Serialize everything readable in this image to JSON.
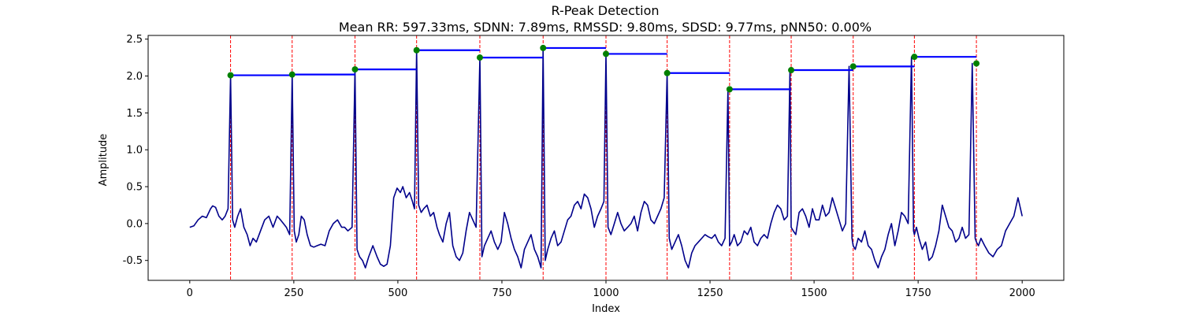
{
  "chart_data": {
    "type": "line",
    "title": "R-Peak Detection",
    "subtitle": "Mean RR: 597.33ms, SDNN: 7.89ms, RMSSD: 9.80ms, SDSD: 9.77ms, pNN50: 0.00%",
    "xlabel": "Index",
    "ylabel": "Amplitude",
    "xlim": [
      -100,
      2100
    ],
    "ylim": [
      -0.77,
      2.55
    ],
    "xticks": [
      0,
      250,
      500,
      750,
      1000,
      1250,
      1500,
      1750,
      2000
    ],
    "yticks": [
      -0.5,
      0.0,
      0.5,
      1.0,
      1.5,
      2.0,
      2.5
    ],
    "grid": false,
    "r_peaks": {
      "x": [
        98,
        246,
        397,
        545,
        697,
        849,
        1000,
        1147,
        1297,
        1445,
        1594,
        1741,
        1890
      ],
      "y": [
        2.01,
        2.02,
        2.09,
        2.35,
        2.25,
        2.38,
        2.3,
        2.04,
        1.82,
        2.08,
        2.13,
        2.26,
        2.17
      ]
    },
    "signal": {
      "x": [
        0,
        10,
        20,
        30,
        40,
        50,
        55,
        62,
        70,
        78,
        85,
        92,
        98,
        103,
        108,
        115,
        122,
        130,
        138,
        145,
        152,
        160,
        170,
        180,
        190,
        200,
        210,
        218,
        225,
        232,
        240,
        246,
        251,
        256,
        262,
        268,
        275,
        282,
        290,
        298,
        306,
        315,
        325,
        335,
        345,
        355,
        365,
        372,
        380,
        390,
        397,
        402,
        408,
        415,
        422,
        430,
        440,
        450,
        458,
        466,
        474,
        482,
        490,
        498,
        506,
        512,
        520,
        528,
        535,
        540,
        545,
        550,
        556,
        562,
        570,
        578,
        586,
        594,
        600,
        608,
        616,
        624,
        632,
        640,
        648,
        656,
        664,
        672,
        680,
        688,
        697,
        702,
        708,
        716,
        724,
        732,
        740,
        748,
        756,
        764,
        772,
        780,
        788,
        796,
        804,
        812,
        820,
        828,
        836,
        844,
        849,
        854,
        860,
        868,
        876,
        884,
        892,
        900,
        908,
        916,
        924,
        932,
        940,
        948,
        956,
        964,
        972,
        980,
        988,
        995,
        1000,
        1005,
        1012,
        1020,
        1028,
        1036,
        1044,
        1052,
        1060,
        1068,
        1076,
        1084,
        1092,
        1100,
        1108,
        1116,
        1124,
        1132,
        1140,
        1147,
        1152,
        1158,
        1166,
        1174,
        1182,
        1190,
        1198,
        1206,
        1214,
        1222,
        1230,
        1238,
        1246,
        1254,
        1262,
        1270,
        1278,
        1286,
        1293,
        1297,
        1302,
        1308,
        1316,
        1324,
        1332,
        1340,
        1348,
        1356,
        1364,
        1372,
        1380,
        1388,
        1396,
        1404,
        1412,
        1420,
        1428,
        1436,
        1442,
        1445,
        1450,
        1456,
        1464,
        1472,
        1480,
        1488,
        1496,
        1504,
        1512,
        1520,
        1528,
        1536,
        1544,
        1552,
        1560,
        1568,
        1576,
        1584,
        1591,
        1594,
        1599,
        1606,
        1614,
        1622,
        1630,
        1638,
        1646,
        1654,
        1662,
        1670,
        1678,
        1686,
        1694,
        1702,
        1710,
        1718,
        1726,
        1734,
        1739,
        1741,
        1746,
        1752,
        1760,
        1768,
        1776,
        1784,
        1792,
        1800,
        1808,
        1816,
        1824,
        1832,
        1840,
        1848,
        1856,
        1864,
        1872,
        1880,
        1887,
        1890,
        1895,
        1901,
        1910,
        1920,
        1930,
        1940,
        1950,
        1960,
        1970,
        1980,
        1990,
        2000
      ],
      "y": [
        -0.05,
        -0.03,
        0.05,
        0.1,
        0.08,
        0.2,
        0.24,
        0.22,
        0.1,
        0.05,
        0.1,
        0.2,
        2.01,
        0.05,
        -0.05,
        0.1,
        0.2,
        -0.05,
        -0.15,
        -0.3,
        -0.2,
        -0.25,
        -0.1,
        0.05,
        0.1,
        -0.05,
        0.1,
        0.05,
        0.0,
        -0.05,
        -0.15,
        2.02,
        -0.1,
        -0.25,
        -0.15,
        0.1,
        0.05,
        -0.15,
        -0.3,
        -0.32,
        -0.3,
        -0.28,
        -0.3,
        -0.1,
        0.0,
        0.05,
        -0.05,
        -0.05,
        -0.1,
        -0.05,
        2.09,
        -0.35,
        -0.45,
        -0.5,
        -0.6,
        -0.45,
        -0.3,
        -0.45,
        -0.55,
        -0.58,
        -0.55,
        -0.3,
        0.35,
        0.48,
        0.42,
        0.5,
        0.35,
        0.42,
        0.3,
        0.2,
        2.35,
        0.25,
        0.15,
        0.2,
        0.25,
        0.1,
        0.15,
        -0.05,
        -0.15,
        -0.25,
        0.0,
        0.15,
        -0.3,
        -0.45,
        -0.5,
        -0.4,
        -0.1,
        0.15,
        0.05,
        -0.05,
        2.25,
        -0.45,
        -0.3,
        -0.2,
        -0.1,
        -0.25,
        -0.35,
        -0.25,
        0.15,
        0.0,
        -0.2,
        -0.35,
        -0.45,
        -0.6,
        -0.35,
        -0.25,
        -0.15,
        -0.35,
        -0.45,
        -0.6,
        2.38,
        -0.5,
        -0.35,
        -0.2,
        -0.1,
        -0.3,
        -0.25,
        -0.1,
        0.05,
        0.1,
        0.25,
        0.3,
        0.2,
        0.4,
        0.35,
        0.2,
        -0.05,
        0.1,
        0.2,
        0.3,
        2.3,
        -0.05,
        -0.15,
        0.0,
        0.15,
        0.0,
        -0.1,
        -0.05,
        0.0,
        0.1,
        -0.1,
        0.15,
        0.3,
        0.25,
        0.05,
        0.0,
        0.1,
        0.2,
        0.35,
        2.04,
        -0.2,
        -0.35,
        -0.25,
        -0.15,
        -0.3,
        -0.5,
        -0.6,
        -0.4,
        -0.3,
        -0.25,
        -0.2,
        -0.15,
        -0.18,
        -0.2,
        -0.15,
        -0.25,
        -0.3,
        -0.2,
        1.82,
        -0.3,
        -0.25,
        -0.15,
        -0.3,
        -0.25,
        -0.1,
        -0.15,
        -0.05,
        -0.25,
        -0.3,
        -0.2,
        -0.15,
        -0.2,
        0.0,
        0.15,
        0.25,
        0.2,
        0.05,
        0.1,
        2.08,
        -0.05,
        -0.1,
        -0.15,
        0.15,
        0.2,
        0.1,
        -0.05,
        0.2,
        0.05,
        0.05,
        0.25,
        0.1,
        0.15,
        0.35,
        0.2,
        0.05,
        -0.1,
        0.0,
        2.13,
        -0.2,
        -0.3,
        -0.35,
        -0.2,
        -0.25,
        -0.1,
        -0.3,
        -0.35,
        -0.5,
        -0.6,
        -0.45,
        -0.35,
        -0.15,
        0.0,
        -0.3,
        -0.1,
        0.15,
        0.1,
        0.0,
        2.26,
        -0.1,
        -0.15,
        -0.05,
        -0.2,
        -0.35,
        -0.25,
        -0.5,
        -0.45,
        -0.3,
        -0.1,
        0.25,
        0.1,
        -0.05,
        -0.1,
        -0.25,
        -0.2,
        -0.05,
        -0.2,
        -0.15,
        2.17,
        -0.2,
        -0.25,
        -0.3,
        -0.2,
        -0.3,
        -0.4,
        -0.45,
        -0.35,
        -0.3,
        -0.1,
        0.0,
        0.1,
        0.35,
        0.1
      ]
    },
    "colors": {
      "signal": "#00008b",
      "peak_line": "#ff0000",
      "rr_segment": "#0000ff",
      "peak_marker": "#008000"
    }
  }
}
